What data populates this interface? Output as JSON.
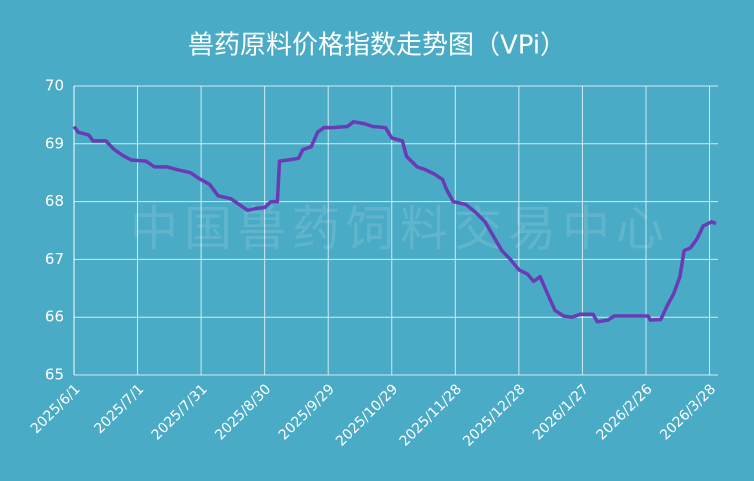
{
  "chart_data": {
    "type": "line",
    "title": "兽药原料价格指数走势图（VPi）",
    "annotation": "中国兽药饲料交易中心",
    "x": [
      "2025/6/1",
      "2025/6/3",
      "2025/6/8",
      "2025/6/10",
      "2025/6/16",
      "2025/6/20",
      "2025/6/24",
      "2025/6/28",
      "2025/7/5",
      "2025/7/9",
      "2025/7/15",
      "2025/7/20",
      "2025/7/26",
      "2025/7/30",
      "2025/8/4",
      "2025/8/8",
      "2025/8/14",
      "2025/8/18",
      "2025/8/22",
      "2025/8/26",
      "2025/8/30",
      "2025/9/2",
      "2025/9/5",
      "2025/9/6",
      "2025/9/10",
      "2025/9/15",
      "2025/9/17",
      "2025/9/21",
      "2025/9/24",
      "2025/9/27",
      "2025/10/1",
      "2025/10/8",
      "2025/10/11",
      "2025/10/16",
      "2025/10/20",
      "2025/10/26",
      "2025/10/29",
      "2025/11/3",
      "2025/11/5",
      "2025/11/10",
      "2025/11/14",
      "2025/11/18",
      "2025/11/22",
      "2025/11/24",
      "2025/11/27",
      "2025/12/3",
      "2025/12/8",
      "2025/12/12",
      "2025/12/16",
      "2025/12/20",
      "2025/12/24",
      "2025/12/28",
      "2026/1/1",
      "2026/1/4",
      "2026/1/7",
      "2026/1/10",
      "2026/1/14",
      "2026/1/18",
      "2026/1/22",
      "2026/1/26",
      "2026/2/1",
      "2026/2/3",
      "2026/2/8",
      "2026/2/11",
      "2026/2/20",
      "2026/2/27",
      "2026/2/28",
      "2026/3/5",
      "2026/3/8",
      "2026/3/11",
      "2026/3/14",
      "2026/3/16",
      "2026/3/19",
      "2026/3/22",
      "2026/3/25",
      "2026/3/29",
      "2026/3/31"
    ],
    "series": [
      {
        "name": "VPi",
        "color": "#6a3bb4",
        "values": [
          69.3,
          69.2,
          69.15,
          69.05,
          69.05,
          68.9,
          68.8,
          68.72,
          68.7,
          68.6,
          68.6,
          68.55,
          68.5,
          68.4,
          68.3,
          68.1,
          68.05,
          67.95,
          67.85,
          67.88,
          67.9,
          68.0,
          68.0,
          68.7,
          68.72,
          68.75,
          68.9,
          68.95,
          69.2,
          69.28,
          69.28,
          69.3,
          69.38,
          69.35,
          69.3,
          69.28,
          69.1,
          69.05,
          68.78,
          68.6,
          68.55,
          68.48,
          68.38,
          68.2,
          68.0,
          67.95,
          67.8,
          67.65,
          67.4,
          67.15,
          67.0,
          66.82,
          66.75,
          66.62,
          66.7,
          66.45,
          66.12,
          66.02,
          66.0,
          66.05,
          66.05,
          65.92,
          65.95,
          66.02,
          66.02,
          66.02,
          65.95,
          65.96,
          66.2,
          66.4,
          66.7,
          67.15,
          67.2,
          67.35,
          67.58,
          67.65,
          67.62
        ]
      }
    ],
    "xlim": [
      "2025/6/1",
      "2026/4/1"
    ],
    "xticks": [
      "2025/6/1",
      "2025/7/1",
      "2025/7/31",
      "2025/8/30",
      "2025/9/29",
      "2025/10/29",
      "2025/11/28",
      "2025/12/28",
      "2026/1/27",
      "2026/2/26",
      "2026/3/28"
    ],
    "ylim": [
      65,
      70
    ],
    "yticks": [
      65,
      66,
      67,
      68,
      69,
      70
    ],
    "grid": true
  }
}
